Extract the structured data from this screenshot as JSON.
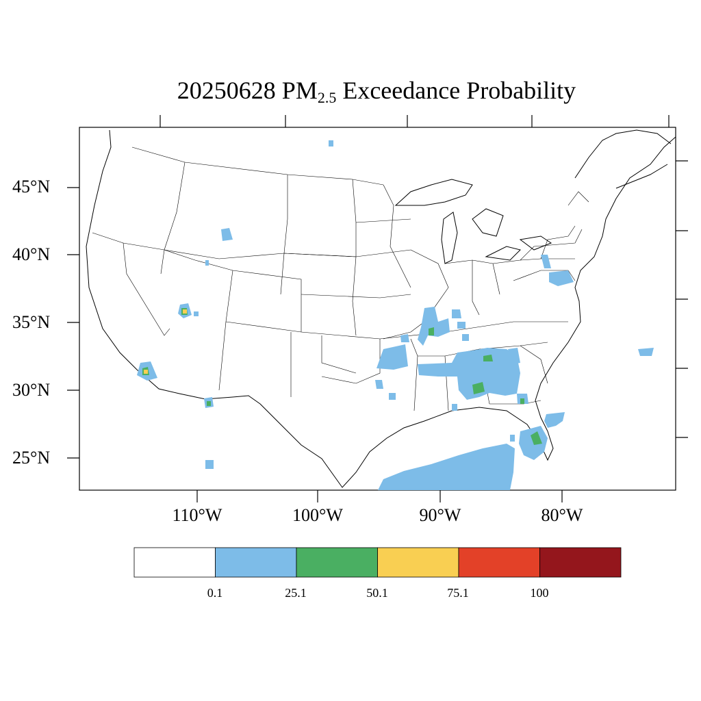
{
  "title": {
    "prefix": "20250628 PM",
    "subscript": "2.5",
    "suffix": " Exceedance Probability"
  },
  "axes": {
    "lat_ticks": [
      "45°N",
      "40°N",
      "35°N",
      "30°N",
      "25°N"
    ],
    "lon_ticks": [
      "110°W",
      "100°W",
      "90°W",
      "80°W"
    ]
  },
  "colorbar": {
    "colors": [
      "#ffffff",
      "#7dbce8",
      "#4aaf62",
      "#f9cf52",
      "#e34128",
      "#94161c"
    ],
    "labels": [
      "0.1",
      "25.1",
      "50.1",
      "75.1",
      "100"
    ]
  },
  "map_data": {
    "type": "probability-contour-map",
    "region": "Contiguous United States",
    "lon_range": [
      -120,
      -70
    ],
    "lat_range": [
      23,
      49
    ],
    "colors_legend": {
      "low": "#7dbce8",
      "mid": "#4aaf62",
      "high": "#f9cf52"
    }
  }
}
